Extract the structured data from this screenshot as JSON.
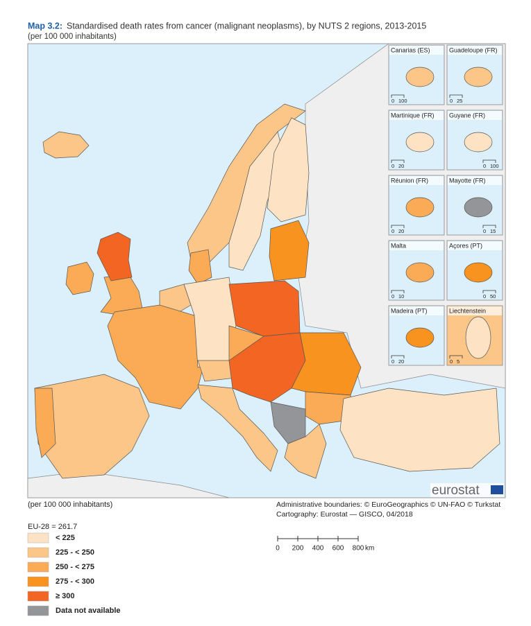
{
  "header": {
    "label": "Map 3.2:",
    "title": "Standardised death rates from cancer (malignant neoplasms), by NUTS 2 regions, 2013-2015",
    "subtitle": "(per 100 000 inhabitants)"
  },
  "insets": [
    {
      "label": "Canarias (ES)",
      "scale": [
        "0",
        "100"
      ]
    },
    {
      "label": "Guadeloupe (FR)",
      "scale": [
        "0",
        "25"
      ]
    },
    {
      "label": "Martinique (FR)",
      "scale": [
        "0",
        "20"
      ]
    },
    {
      "label": "Guyane (FR)",
      "scale": [
        "0",
        "100"
      ]
    },
    {
      "label": "Réunion (FR)",
      "scale": [
        "0",
        "20"
      ]
    },
    {
      "label": "Mayotte (FR)",
      "scale": [
        "0",
        "15"
      ]
    },
    {
      "label": "Malta",
      "scale": [
        "0",
        "10"
      ]
    },
    {
      "label": "Açores (PT)",
      "scale": [
        "0",
        "50"
      ]
    },
    {
      "label": "Madeira (PT)",
      "scale": [
        "0",
        "20"
      ]
    },
    {
      "label": "Liechtenstein",
      "scale": [
        "0",
        "5"
      ]
    }
  ],
  "logo": "eurostat",
  "footer": {
    "unit": "(per 100 000 inhabitants)",
    "credits": [
      "Administrative boundaries: © EuroGeographics © UN-FAO © Turkstat",
      "Cartography: Eurostat — GISCO, 04/2018"
    ]
  },
  "legend": {
    "title": "EU-28 = 261.7",
    "items": [
      {
        "label": "< 225",
        "color": "#fde3c3"
      },
      {
        "label": "225 - < 250",
        "color": "#fdc689"
      },
      {
        "label": "250 - < 275",
        "color": "#fbaa55"
      },
      {
        "label": "275 - < 300",
        "color": "#f7931e"
      },
      {
        "label": "≥ 300",
        "color": "#f26522"
      },
      {
        "label": "Data not available",
        "color": "#939598"
      }
    ]
  },
  "scale_bar": {
    "ticks": [
      "0",
      "200",
      "400",
      "600",
      "800"
    ],
    "unit": "km"
  }
}
